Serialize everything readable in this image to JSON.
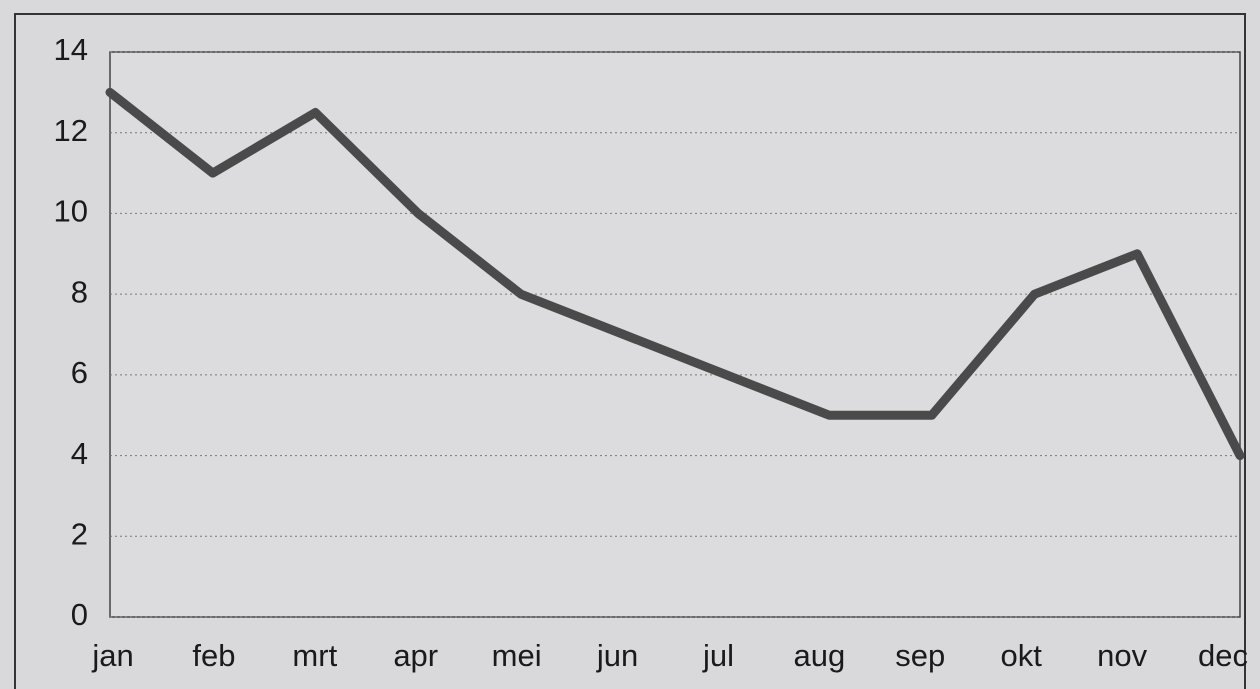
{
  "chart_data": {
    "type": "line",
    "categories": [
      "jan",
      "feb",
      "mrt",
      "apr",
      "mei",
      "jun",
      "jul",
      "aug",
      "sep",
      "okt",
      "nov",
      "dec"
    ],
    "series": [
      {
        "color": "#4a4a4a",
        "values": [
          13,
          11,
          12.5,
          10,
          8,
          7,
          6,
          5,
          5,
          8,
          9,
          4
        ]
      }
    ],
    "ylim": [
      0,
      14
    ],
    "yticks": [
      0,
      2,
      4,
      6,
      8,
      10,
      12,
      14
    ],
    "grid": true
  }
}
